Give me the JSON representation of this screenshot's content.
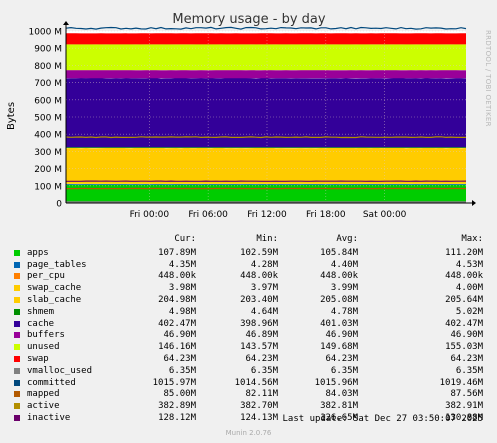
{
  "chart_data": {
    "type": "area",
    "title": "Memory usage - by day",
    "ylabel": "Bytes",
    "ylim": [
      0,
      1000000000
    ],
    "y_tick_labels": [
      "0",
      "100 M",
      "200 M",
      "300 M",
      "400 M",
      "500 M",
      "600 M",
      "700 M",
      "800 M",
      "900 M",
      "1000 M"
    ],
    "y_tick_values": [
      0,
      100000000,
      200000000,
      300000000,
      400000000,
      500000000,
      600000000,
      700000000,
      800000000,
      900000000,
      1000000000
    ],
    "x_tick_labels": [
      "Fri 00:00",
      "Fri 06:00",
      "Fri 12:00",
      "Fri 18:00",
      "Sat 00:00"
    ],
    "x_range_hours": [
      -8.5,
      32.3
    ],
    "x_tick_hours": [
      0,
      6,
      12,
      18,
      24
    ],
    "grid": true,
    "stacked_series": [
      {
        "name": "apps",
        "color": "#00cc00",
        "value_m": 105.84
      },
      {
        "name": "page_tables",
        "color": "#0066b3",
        "value_m": 4.4
      },
      {
        "name": "per_cpu",
        "color": "#ff8000",
        "value_m": 0.448
      },
      {
        "name": "swap_cache",
        "color": "#ffcc00",
        "value_m": 3.99
      },
      {
        "name": "slab_cache",
        "color": "#ffcc00",
        "value_m": 205.08
      },
      {
        "name": "shmem",
        "color": "#008f00",
        "value_m": 4.78
      },
      {
        "name": "cache",
        "color": "#330099",
        "value_m": 401.03
      },
      {
        "name": "buffers",
        "color": "#990099",
        "value_m": 46.9
      },
      {
        "name": "unused",
        "color": "#ccff00",
        "value_m": 149.68
      },
      {
        "name": "swap",
        "color": "#ff0000",
        "value_m": 64.23
      }
    ],
    "line_series": [
      {
        "name": "vmalloc_used",
        "color": "#808080",
        "value_m": 6.35
      },
      {
        "name": "committed",
        "color": "#00487d",
        "value_m": 1015.96
      },
      {
        "name": "mapped",
        "color": "#b35a00",
        "value_m": 84.03
      },
      {
        "name": "active",
        "color": "#b38f00",
        "value_m": 382.81
      },
      {
        "name": "inactive",
        "color": "#6b006b",
        "value_m": 126.65
      }
    ]
  },
  "legend": {
    "headers": {
      "cur": "Cur:",
      "min": "Min:",
      "avg": "Avg:",
      "max": "Max:"
    },
    "rows": [
      {
        "name": "apps",
        "color": "#00cc00",
        "cur": "107.89M",
        "min": "102.59M",
        "avg": "105.84M",
        "max": "111.20M"
      },
      {
        "name": "page_tables",
        "color": "#0066b3",
        "cur": "4.35M",
        "min": "4.28M",
        "avg": "4.40M",
        "max": "4.53M"
      },
      {
        "name": "per_cpu",
        "color": "#ff8000",
        "cur": "448.00k",
        "min": "448.00k",
        "avg": "448.00k",
        "max": "448.00k"
      },
      {
        "name": "swap_cache",
        "color": "#ffcc00",
        "cur": "3.98M",
        "min": "3.97M",
        "avg": "3.99M",
        "max": "4.00M"
      },
      {
        "name": "slab_cache",
        "color": "#ffcc00",
        "cur": "204.98M",
        "min": "203.40M",
        "avg": "205.08M",
        "max": "205.64M"
      },
      {
        "name": "shmem",
        "color": "#008f00",
        "cur": "4.98M",
        "min": "4.64M",
        "avg": "4.78M",
        "max": "5.02M"
      },
      {
        "name": "cache",
        "color": "#330099",
        "cur": "402.47M",
        "min": "398.96M",
        "avg": "401.03M",
        "max": "402.47M"
      },
      {
        "name": "buffers",
        "color": "#990099",
        "cur": "46.90M",
        "min": "46.89M",
        "avg": "46.90M",
        "max": "46.90M"
      },
      {
        "name": "unused",
        "color": "#ccff00",
        "cur": "146.16M",
        "min": "143.57M",
        "avg": "149.68M",
        "max": "155.03M"
      },
      {
        "name": "swap",
        "color": "#ff0000",
        "cur": "64.23M",
        "min": "64.23M",
        "avg": "64.23M",
        "max": "64.23M"
      },
      {
        "name": "vmalloc_used",
        "color": "#808080",
        "cur": "6.35M",
        "min": "6.35M",
        "avg": "6.35M",
        "max": "6.35M"
      },
      {
        "name": "committed",
        "color": "#00487d",
        "cur": "1015.97M",
        "min": "1014.56M",
        "avg": "1015.96M",
        "max": "1019.46M"
      },
      {
        "name": "mapped",
        "color": "#b35a00",
        "cur": "85.00M",
        "min": "82.11M",
        "avg": "84.03M",
        "max": "87.56M"
      },
      {
        "name": "active",
        "color": "#b38f00",
        "cur": "382.89M",
        "min": "382.70M",
        "avg": "382.81M",
        "max": "382.91M"
      },
      {
        "name": "inactive",
        "color": "#6b006b",
        "cur": "128.12M",
        "min": "124.13M",
        "avg": "126.65M",
        "max": "130.88M"
      }
    ]
  },
  "last_update": "Last update: Sat Dec 27 03:50:07 2025",
  "footer": "Munin 2.0.76",
  "side_credit": "RRDTOOL / TOBI OETIKER"
}
